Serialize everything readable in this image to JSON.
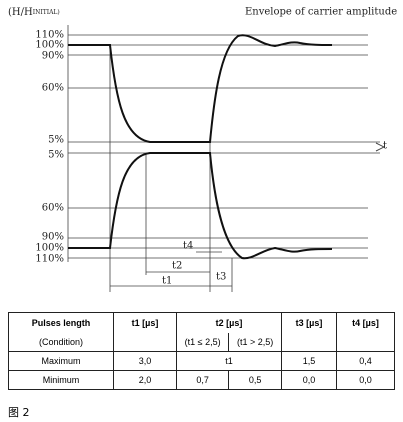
{
  "y_axis_label": {
    "main": "(H/H",
    "sub": "INITIAL)"
  },
  "title": "Envelope of carrier amplitude",
  "time_axis_label": "t",
  "upper_levels": [
    "110%",
    "100%",
    "90%",
    "60%",
    "5%"
  ],
  "lower_levels": [
    "5%",
    "60%",
    "90%",
    "100%",
    "110%"
  ],
  "intervals": [
    "t1",
    "t2",
    "t3",
    "t4"
  ],
  "table": {
    "header": [
      "Pulses length",
      "t1 [µs]",
      "t2 [µs]",
      "t3 [µs]",
      "t4 [µs]"
    ],
    "condition": [
      "(Condition)",
      "(t1 ≤ 2,5)",
      "(t1 > 2,5)"
    ],
    "rows": [
      [
        "Maximum",
        "3,0",
        "t1",
        "1,5",
        "0,4"
      ],
      [
        "Minimum",
        "2,0",
        "0,7",
        "0,5",
        "0,0",
        "0,0"
      ]
    ]
  },
  "caption": "图 2"
}
